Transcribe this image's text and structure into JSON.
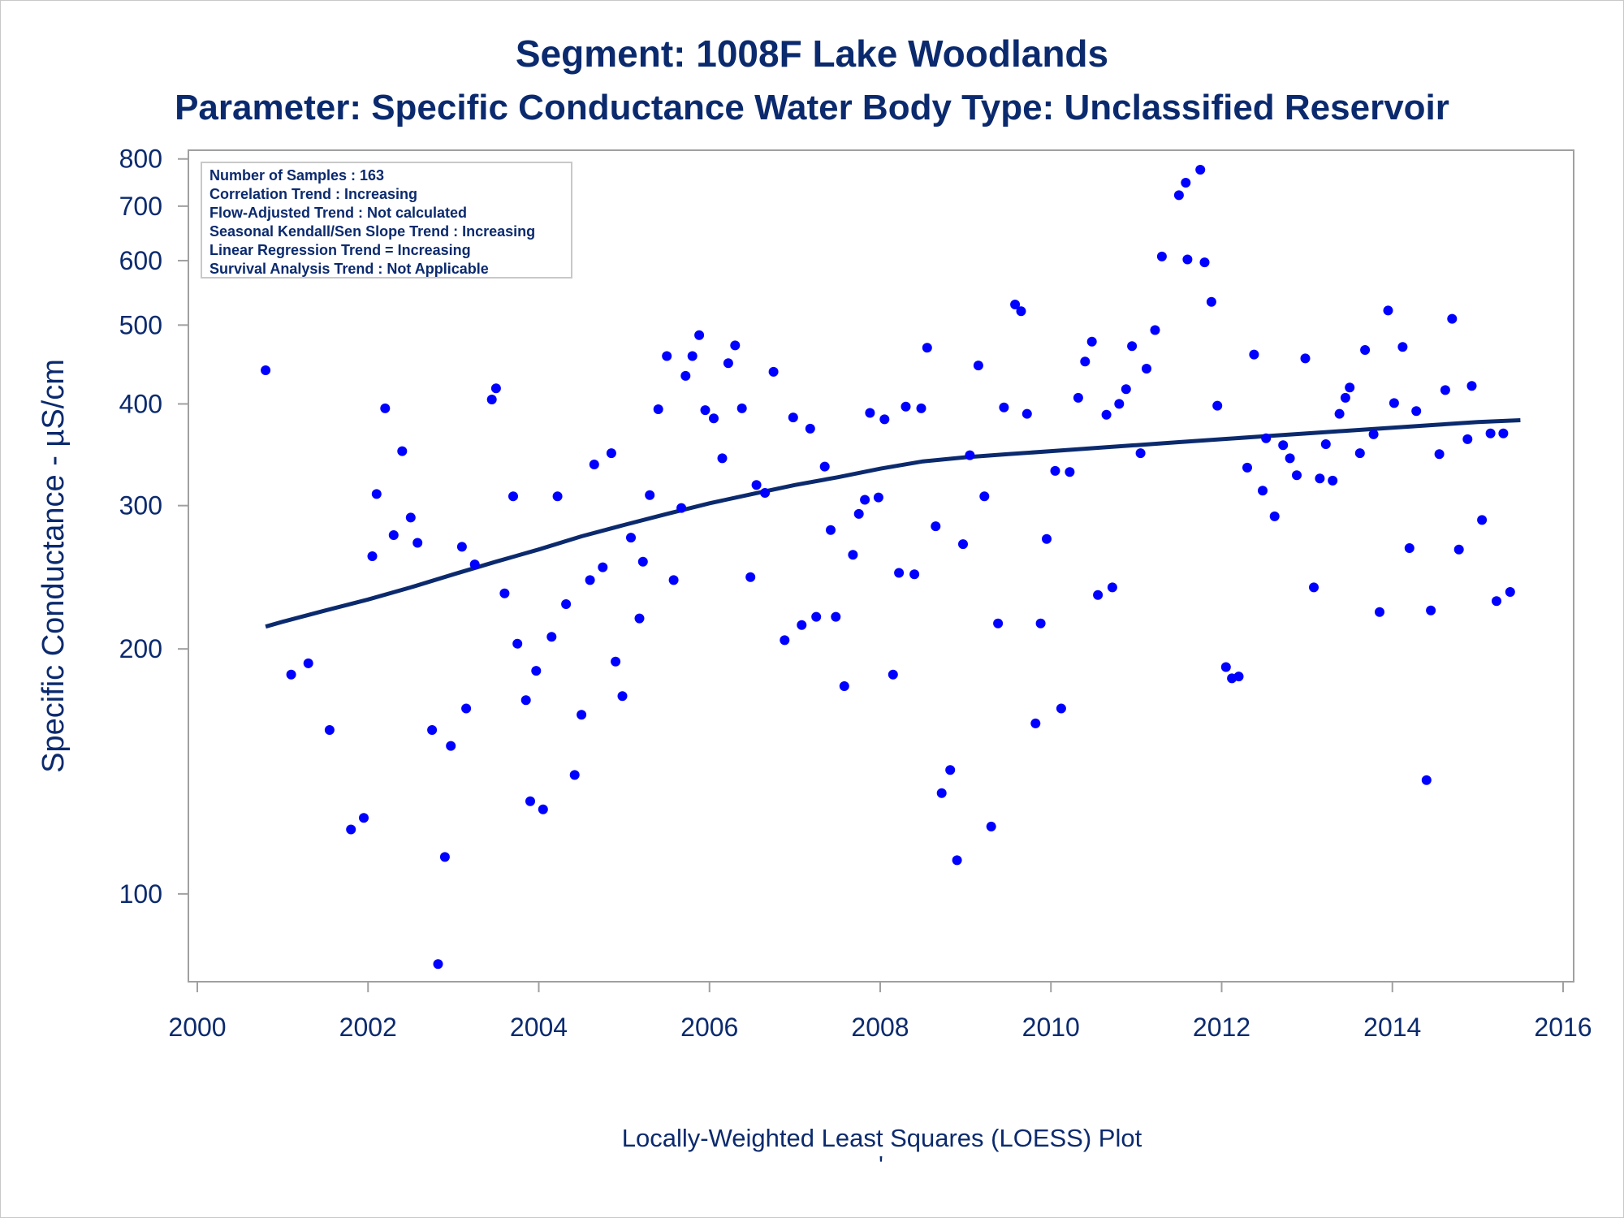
{
  "chart_data": {
    "type": "scatter",
    "title": "Segment: 1008F  Lake Woodlands",
    "subtitle": "Parameter: Specific Conductance   Water Body Type: Unclassified Reservoir",
    "ylabel": "Specific Conductance -  µS/cm",
    "xlabel": "",
    "footnote": "Locally-Weighted Least Squares (LOESS) Plot",
    "footnote_mark": "'",
    "y_scale": "log",
    "xlim": [
      2000,
      2016
    ],
    "ylim": [
      78,
      820
    ],
    "x_ticks": [
      "2000",
      "2002",
      "2004",
      "2006",
      "2008",
      "2010",
      "2012",
      "2014",
      "2016"
    ],
    "y_ticks": [
      "100",
      "200",
      "300",
      "400",
      "500",
      "600",
      "700",
      "800"
    ],
    "colors": {
      "points": "#0000ff",
      "trend": "#0b2a6e",
      "text": "#0b2a6e",
      "frame": "#a0a0a0"
    },
    "stats_box": [
      "Number of Samples : 163",
      "Correlation Trend : Increasing",
      "Flow-Adjusted Trend : Not calculated",
      "Seasonal Kendall/Sen Slope Trend : Increasing",
      "Linear Regression Trend = Increasing",
      "Survival Analysis Trend : Not Applicable"
    ],
    "series": [
      {
        "type": "scatter",
        "points": [
          [
            2000.8,
            440
          ],
          [
            2001.1,
            186
          ],
          [
            2001.3,
            192
          ],
          [
            2001.55,
            159
          ],
          [
            2001.8,
            120
          ],
          [
            2001.95,
            124
          ],
          [
            2002.05,
            260
          ],
          [
            2002.1,
            310
          ],
          [
            2002.2,
            395
          ],
          [
            2002.3,
            276
          ],
          [
            2002.4,
            350
          ],
          [
            2002.5,
            290
          ],
          [
            2002.58,
            270
          ],
          [
            2002.75,
            159
          ],
          [
            2002.82,
            82
          ],
          [
            2002.9,
            111
          ],
          [
            2002.97,
            152
          ],
          [
            2003.1,
            267
          ],
          [
            2003.15,
            169
          ],
          [
            2003.25,
            254
          ],
          [
            2003.45,
            405
          ],
          [
            2003.5,
            418
          ],
          [
            2003.6,
            234
          ],
          [
            2003.7,
            308
          ],
          [
            2003.75,
            203
          ],
          [
            2003.85,
            173
          ],
          [
            2003.9,
            130
          ],
          [
            2003.97,
            188
          ],
          [
            2004.05,
            127
          ],
          [
            2004.15,
            207
          ],
          [
            2004.22,
            308
          ],
          [
            2004.32,
            227
          ],
          [
            2004.42,
            140
          ],
          [
            2004.5,
            166
          ],
          [
            2004.6,
            243
          ],
          [
            2004.65,
            337
          ],
          [
            2004.75,
            252
          ],
          [
            2004.85,
            348
          ],
          [
            2004.9,
            193
          ],
          [
            2004.98,
            175
          ],
          [
            2005.08,
            274
          ],
          [
            2005.18,
            218
          ],
          [
            2005.22,
            256
          ],
          [
            2005.3,
            309
          ],
          [
            2005.4,
            394
          ],
          [
            2005.5,
            458
          ],
          [
            2005.58,
            243
          ],
          [
            2005.67,
            298
          ],
          [
            2005.72,
            433
          ],
          [
            2005.8,
            458
          ],
          [
            2005.88,
            486
          ],
          [
            2005.95,
            393
          ],
          [
            2006.05,
            384
          ],
          [
            2006.15,
            343
          ],
          [
            2006.22,
            449
          ],
          [
            2006.3,
            472
          ],
          [
            2006.38,
            395
          ],
          [
            2006.48,
            245
          ],
          [
            2006.55,
            318
          ],
          [
            2006.65,
            311
          ],
          [
            2006.75,
            438
          ],
          [
            2006.88,
            205
          ],
          [
            2006.98,
            385
          ],
          [
            2007.08,
            214
          ],
          [
            2007.18,
            373
          ],
          [
            2007.25,
            219
          ],
          [
            2007.35,
            335
          ],
          [
            2007.42,
            280
          ],
          [
            2007.48,
            219
          ],
          [
            2007.58,
            180
          ],
          [
            2007.68,
            261
          ],
          [
            2007.75,
            293
          ],
          [
            2007.82,
            305
          ],
          [
            2007.88,
            390
          ],
          [
            2007.98,
            307
          ],
          [
            2008.05,
            383
          ],
          [
            2008.15,
            186
          ],
          [
            2008.22,
            248
          ],
          [
            2008.3,
            397
          ],
          [
            2008.4,
            247
          ],
          [
            2008.48,
            395
          ],
          [
            2008.55,
            469
          ],
          [
            2008.65,
            283
          ],
          [
            2008.72,
            133
          ],
          [
            2008.82,
            142
          ],
          [
            2008.9,
            110
          ],
          [
            2008.97,
            269
          ],
          [
            2009.05,
            346
          ],
          [
            2009.15,
            446
          ],
          [
            2009.22,
            308
          ],
          [
            2009.3,
            121
          ],
          [
            2009.38,
            215
          ],
          [
            2009.45,
            396
          ],
          [
            2009.58,
            530
          ],
          [
            2009.65,
            520
          ],
          [
            2009.72,
            389
          ],
          [
            2009.82,
            162
          ],
          [
            2009.88,
            215
          ],
          [
            2009.95,
            273
          ],
          [
            2010.05,
            331
          ],
          [
            2010.12,
            169
          ],
          [
            2010.22,
            330
          ],
          [
            2010.32,
            407
          ],
          [
            2010.4,
            451
          ],
          [
            2010.48,
            477
          ],
          [
            2010.55,
            233
          ],
          [
            2010.65,
            388
          ],
          [
            2010.72,
            238
          ],
          [
            2010.8,
            400
          ],
          [
            2010.88,
            417
          ],
          [
            2010.95,
            471
          ],
          [
            2011.05,
            348
          ],
          [
            2011.12,
            442
          ],
          [
            2011.22,
            493
          ],
          [
            2011.3,
            607
          ],
          [
            2011.5,
            722
          ],
          [
            2011.58,
            748
          ],
          [
            2011.6,
            602
          ],
          [
            2011.75,
            776
          ],
          [
            2011.8,
            597
          ],
          [
            2011.88,
            534
          ],
          [
            2011.95,
            398
          ],
          [
            2012.05,
            190
          ],
          [
            2012.12,
            184
          ],
          [
            2012.2,
            185
          ],
          [
            2012.3,
            334
          ],
          [
            2012.38,
            460
          ],
          [
            2012.48,
            313
          ],
          [
            2012.52,
            363
          ],
          [
            2012.62,
            291
          ],
          [
            2012.72,
            356
          ],
          [
            2012.8,
            343
          ],
          [
            2012.88,
            327
          ],
          [
            2012.98,
            455
          ],
          [
            2013.08,
            238
          ],
          [
            2013.15,
            324
          ],
          [
            2013.22,
            357
          ],
          [
            2013.3,
            322
          ],
          [
            2013.38,
            389
          ],
          [
            2013.45,
            407
          ],
          [
            2013.5,
            419
          ],
          [
            2013.62,
            348
          ],
          [
            2013.68,
            466
          ],
          [
            2013.78,
            367
          ],
          [
            2013.85,
            222
          ],
          [
            2013.95,
            521
          ],
          [
            2014.02,
            401
          ],
          [
            2014.12,
            470
          ],
          [
            2014.2,
            266
          ],
          [
            2014.28,
            392
          ],
          [
            2014.4,
            138
          ],
          [
            2014.45,
            223
          ],
          [
            2014.55,
            347
          ],
          [
            2014.62,
            416
          ],
          [
            2014.7,
            509
          ],
          [
            2014.78,
            265
          ],
          [
            2014.88,
            362
          ],
          [
            2014.93,
            421
          ],
          [
            2015.05,
            288
          ],
          [
            2015.15,
            368
          ],
          [
            2015.22,
            229
          ],
          [
            2015.3,
            368
          ],
          [
            2015.38,
            235
          ]
        ]
      },
      {
        "type": "line",
        "name": "",
        "points": [
          [
            2000.8,
            213
          ],
          [
            2001.0,
            216
          ],
          [
            2001.5,
            223
          ],
          [
            2002.0,
            230
          ],
          [
            2002.5,
            238
          ],
          [
            2003.0,
            247
          ],
          [
            2003.5,
            256
          ],
          [
            2004.0,
            265
          ],
          [
            2004.5,
            275
          ],
          [
            2005.0,
            284
          ],
          [
            2005.5,
            293
          ],
          [
            2006.0,
            302
          ],
          [
            2006.5,
            310
          ],
          [
            2007.0,
            318
          ],
          [
            2007.5,
            325
          ],
          [
            2008.0,
            333
          ],
          [
            2008.5,
            340
          ],
          [
            2009.0,
            344
          ],
          [
            2009.5,
            347
          ],
          [
            2010.0,
            350
          ],
          [
            2010.5,
            353
          ],
          [
            2011.0,
            356
          ],
          [
            2011.5,
            359
          ],
          [
            2012.0,
            362
          ],
          [
            2012.5,
            365
          ],
          [
            2013.0,
            368
          ],
          [
            2013.5,
            371
          ],
          [
            2014.0,
            374
          ],
          [
            2014.5,
            377
          ],
          [
            2015.0,
            380
          ],
          [
            2015.5,
            382
          ]
        ]
      }
    ]
  }
}
